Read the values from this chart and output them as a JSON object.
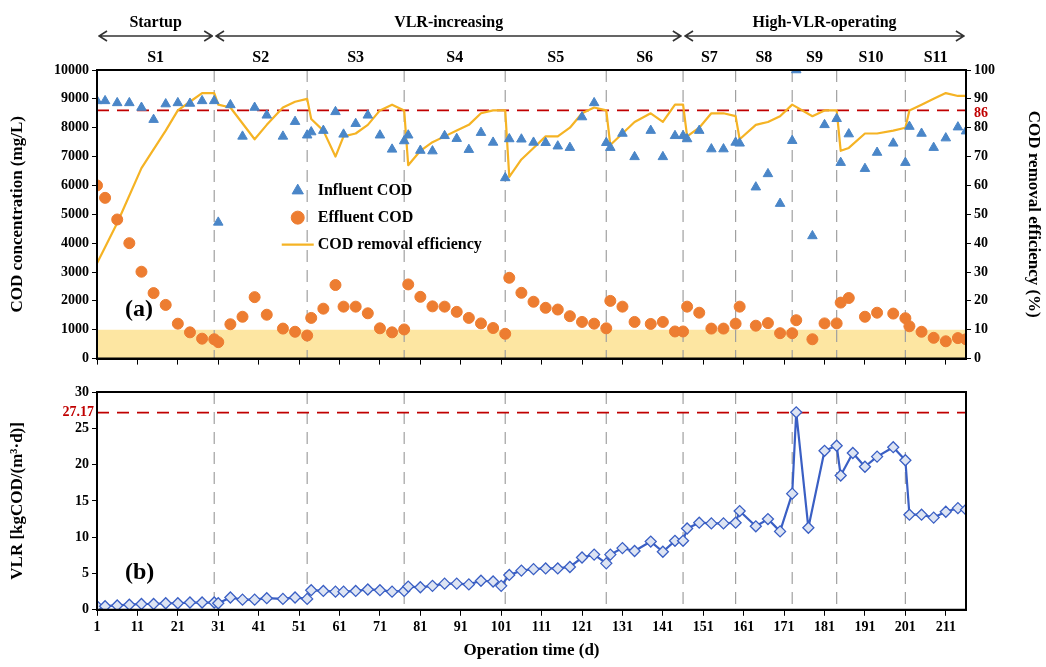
{
  "chart_data": [
    {
      "type": "scatter",
      "ylabel": "COD concentration (mg/L)",
      "y2label": "COD removal efficiency (%)",
      "xlim": [
        1,
        216
      ],
      "xticks": [
        1,
        11,
        21,
        31,
        41,
        51,
        61,
        71,
        81,
        91,
        101,
        111,
        121,
        131,
        141,
        151,
        161,
        171,
        181,
        191,
        201,
        211
      ],
      "ylim": [
        0,
        10000
      ],
      "yticks": [
        0,
        1000,
        2000,
        3000,
        4000,
        5000,
        6000,
        7000,
        8000,
        9000,
        10000
      ],
      "y2lim": [
        0,
        100
      ],
      "y2ticks": [
        0,
        10,
        20,
        30,
        40,
        50,
        60,
        70,
        80,
        90,
        100
      ],
      "tick_labels": "y",
      "legend": "center",
      "series": [
        {
          "name": "Influent COD",
          "marker": "triangle",
          "color": "#4a86c8",
          "x": [
            1,
            3,
            6,
            9,
            12,
            15,
            18,
            21,
            24,
            27,
            30,
            31,
            34,
            37,
            40,
            43,
            47,
            50,
            53,
            54,
            57,
            60,
            62,
            65,
            68,
            71,
            74,
            77,
            78,
            81,
            84,
            87,
            90,
            93,
            96,
            99,
            102,
            103,
            106,
            109,
            112,
            115,
            118,
            121,
            124,
            127,
            128,
            131,
            134,
            138,
            141,
            144,
            146,
            147,
            150,
            153,
            156,
            159,
            160,
            164,
            167,
            170,
            173,
            174,
            178,
            181,
            184,
            185,
            187,
            191,
            194,
            198,
            201,
            202,
            205,
            208,
            211,
            214,
            216
          ],
          "values": [
            8930,
            8930,
            8860,
            8860,
            8700,
            8280,
            8820,
            8860,
            8840,
            8930,
            8930,
            4720,
            8790,
            7700,
            8700,
            8430,
            7700,
            8210,
            7740,
            7850,
            7900,
            8550,
            7770,
            8140,
            8430,
            7740,
            7250,
            7540,
            7740,
            7210,
            7190,
            7720,
            7620,
            7240,
            7830,
            7490,
            6260,
            7610,
            7600,
            7490,
            7480,
            7360,
            7310,
            8370,
            8860,
            7480,
            7310,
            7800,
            6990,
            7900,
            6990,
            7720,
            7720,
            7610,
            7900,
            7260,
            7260,
            7490,
            7460,
            5940,
            6400,
            5370,
            7550,
            10000,
            4250,
            8100,
            8310,
            6790,
            7780,
            6580,
            7140,
            7460,
            6790,
            8040,
            7800,
            7310,
            7640,
            8020,
            7880
          ]
        },
        {
          "name": "Effluent COD",
          "marker": "circle",
          "color": "#ed7d31",
          "x": [
            1,
            3,
            6,
            9,
            12,
            15,
            18,
            21,
            24,
            27,
            30,
            31,
            34,
            37,
            40,
            43,
            47,
            50,
            53,
            54,
            57,
            60,
            62,
            65,
            68,
            71,
            74,
            77,
            78,
            81,
            84,
            87,
            90,
            93,
            96,
            99,
            102,
            103,
            106,
            109,
            112,
            115,
            118,
            121,
            124,
            127,
            128,
            131,
            134,
            138,
            141,
            144,
            146,
            147,
            150,
            153,
            156,
            159,
            160,
            164,
            167,
            170,
            173,
            174,
            178,
            181,
            184,
            185,
            187,
            191,
            194,
            198,
            201,
            202,
            205,
            208,
            211,
            214,
            216
          ],
          "values": [
            6000,
            5570,
            4820,
            4000,
            3010,
            2270,
            1860,
            1210,
            910,
            690,
            670,
            570,
            1190,
            1450,
            2130,
            1520,
            1040,
            930,
            800,
            1410,
            1730,
            2550,
            1800,
            1800,
            1570,
            1050,
            910,
            1010,
            2570,
            2140,
            1810,
            1800,
            1620,
            1410,
            1220,
            1060,
            860,
            2800,
            2280,
            1970,
            1760,
            1700,
            1470,
            1270,
            1210,
            1050,
            2000,
            1800,
            1270,
            1200,
            1270,
            940,
            940,
            1800,
            1590,
            1040,
            1040,
            1210,
            1800,
            1140,
            1230,
            880,
            880,
            1330,
            670,
            1220,
            1220,
            1940,
            2100,
            1450,
            1590,
            1560,
            1400,
            1120,
            930,
            720,
            600,
            710,
            670
          ]
        },
        {
          "name": "COD removal efficiency",
          "type": "line",
          "marker": "none",
          "axis": "y2",
          "color": "#f5b324",
          "x": [
            1,
            6,
            12,
            18,
            21,
            24,
            27,
            30,
            31,
            34,
            40,
            43,
            47,
            50,
            53,
            54,
            57,
            60,
            62,
            65,
            68,
            71,
            74,
            77,
            78,
            81,
            84,
            87,
            90,
            93,
            96,
            99,
            102,
            103,
            106,
            109,
            112,
            115,
            118,
            121,
            124,
            127,
            128,
            131,
            134,
            138,
            141,
            144,
            146,
            147,
            150,
            153,
            156,
            159,
            160,
            164,
            167,
            170,
            173,
            178,
            181,
            184,
            185,
            187,
            191,
            194,
            198,
            201,
            202,
            205,
            208,
            211,
            214,
            216
          ],
          "values": [
            33,
            47,
            66,
            79,
            86,
            89,
            92,
            92,
            88,
            87,
            76,
            81,
            87,
            89,
            90,
            83,
            79,
            70,
            77,
            78,
            81,
            86,
            88,
            86,
            67,
            72,
            75,
            77,
            79,
            81,
            85,
            86,
            86,
            63,
            69,
            73,
            77,
            77,
            80,
            85,
            87,
            86,
            74,
            78,
            82,
            85,
            82,
            88,
            88,
            77,
            80,
            85,
            85,
            84,
            76,
            81,
            82,
            84,
            88,
            84,
            86,
            86,
            72,
            73,
            78,
            78,
            79,
            80,
            86,
            88,
            90,
            92,
            91,
            91
          ]
        }
      ],
      "ref_lines": [
        {
          "axis": "x",
          "value": 30,
          "color": "#a0a0a0",
          "line_style": "dashed"
        },
        {
          "axis": "x",
          "value": 53,
          "color": "#a0a0a0",
          "line_style": "dashed"
        },
        {
          "axis": "x",
          "value": 77,
          "color": "#a0a0a0",
          "line_style": "dashed"
        },
        {
          "axis": "x",
          "value": 102,
          "color": "#a0a0a0",
          "line_style": "dashed"
        },
        {
          "axis": "x",
          "value": 127,
          "color": "#a0a0a0",
          "line_style": "dashed"
        },
        {
          "axis": "x",
          "value": 146,
          "color": "#a0a0a0",
          "line_style": "dashed"
        },
        {
          "axis": "x",
          "value": 159,
          "color": "#a0a0a0",
          "line_style": "dashed"
        },
        {
          "axis": "x",
          "value": 173,
          "color": "#a0a0a0",
          "line_style": "dashed"
        },
        {
          "axis": "x",
          "value": 184,
          "color": "#a0a0a0",
          "line_style": "dashed"
        },
        {
          "axis": "x",
          "value": 201,
          "color": "#a0a0a0",
          "line_style": "dashed"
        },
        {
          "axis": "y2",
          "value": 86,
          "label": "86",
          "color": "#c00000",
          "line_style": "dashed"
        }
      ],
      "bands": [
        {
          "axis": "y",
          "from": 0,
          "to": 1000,
          "color": "#fde6a2"
        }
      ],
      "annotations": [
        "(a)",
        "Startup",
        "VLR-increasing",
        "High-VLR-operating",
        "S1",
        "S2",
        "S3",
        "S4",
        "S5",
        "S6",
        "S7",
        "S8",
        "S9",
        "S10",
        "S11"
      ]
    },
    {
      "type": "line",
      "xlabel": "Operation time (d)",
      "ylabel": "VLR [kgCOD/(m³·d)]",
      "xlim": [
        1,
        216
      ],
      "xticks": [
        1,
        11,
        21,
        31,
        41,
        51,
        61,
        71,
        81,
        91,
        101,
        111,
        121,
        131,
        141,
        151,
        161,
        171,
        181,
        191,
        201,
        211
      ],
      "ylim": [
        0,
        30
      ],
      "yticks": [
        0,
        5,
        10,
        15,
        20,
        25,
        30
      ],
      "marker": "diamond",
      "series": [
        {
          "color": "#3a5fc4",
          "x": [
            1,
            3,
            6,
            9,
            12,
            15,
            18,
            21,
            24,
            27,
            30,
            31,
            34,
            37,
            40,
            43,
            47,
            50,
            53,
            54,
            57,
            60,
            62,
            65,
            68,
            71,
            74,
            77,
            78,
            81,
            84,
            87,
            90,
            93,
            96,
            99,
            101,
            103,
            106,
            109,
            112,
            115,
            118,
            121,
            124,
            127,
            128,
            131,
            134,
            138,
            141,
            144,
            146,
            147,
            150,
            153,
            156,
            159,
            160,
            164,
            167,
            170,
            173,
            174,
            177,
            181,
            184,
            185,
            188,
            191,
            194,
            198,
            201,
            202,
            205,
            208,
            211,
            214,
            216
          ],
          "values": [
            0.5,
            0.5,
            0.6,
            0.7,
            0.8,
            0.8,
            0.9,
            0.9,
            1.0,
            1.0,
            1.0,
            0.9,
            1.7,
            1.4,
            1.4,
            1.6,
            1.5,
            1.7,
            1.5,
            2.7,
            2.6,
            2.5,
            2.5,
            2.6,
            2.8,
            2.7,
            2.5,
            2.6,
            3.2,
            3.1,
            3.3,
            3.6,
            3.6,
            3.5,
            4.0,
            3.9,
            3.3,
            4.8,
            5.4,
            5.6,
            5.7,
            5.7,
            5.9,
            7.2,
            7.6,
            6.4,
            7.6,
            8.5,
            8.1,
            9.4,
            8.0,
            9.5,
            9.5,
            11.2,
            12.0,
            11.9,
            11.9,
            12.0,
            13.6,
            11.5,
            12.5,
            10.8,
            16.0,
            27.2,
            11.3,
            21.9,
            22.6,
            18.5,
            21.6,
            19.7,
            21.1,
            22.4,
            20.6,
            13.1,
            13.1,
            12.7,
            13.5,
            14.0,
            13.8
          ]
        }
      ],
      "ref_lines": [
        {
          "axis": "x",
          "value": 30,
          "color": "#a0a0a0",
          "line_style": "dashed"
        },
        {
          "axis": "x",
          "value": 53,
          "color": "#a0a0a0",
          "line_style": "dashed"
        },
        {
          "axis": "x",
          "value": 77,
          "color": "#a0a0a0",
          "line_style": "dashed"
        },
        {
          "axis": "x",
          "value": 102,
          "color": "#a0a0a0",
          "line_style": "dashed"
        },
        {
          "axis": "x",
          "value": 127,
          "color": "#a0a0a0",
          "line_style": "dashed"
        },
        {
          "axis": "x",
          "value": 146,
          "color": "#a0a0a0",
          "line_style": "dashed"
        },
        {
          "axis": "x",
          "value": 159,
          "color": "#a0a0a0",
          "line_style": "dashed"
        },
        {
          "axis": "x",
          "value": 173,
          "color": "#a0a0a0",
          "line_style": "dashed"
        },
        {
          "axis": "x",
          "value": 184,
          "color": "#a0a0a0",
          "line_style": "dashed"
        },
        {
          "axis": "x",
          "value": 201,
          "color": "#a0a0a0",
          "line_style": "dashed"
        },
        {
          "axis": "y",
          "value": 27.17,
          "label": "27.17",
          "color": "#c00000",
          "line_style": "dashed"
        }
      ],
      "annotations": [
        "(b)"
      ]
    }
  ]
}
